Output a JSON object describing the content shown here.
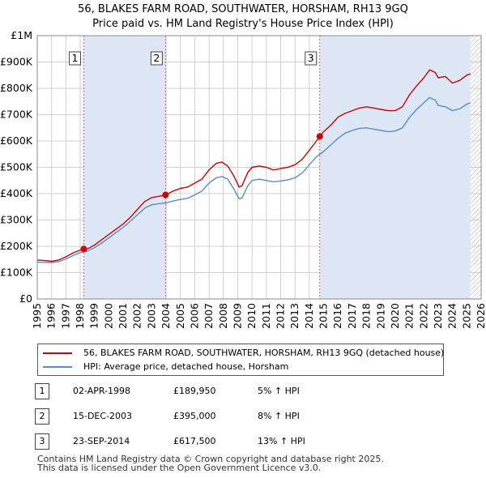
{
  "title_line1": "56, BLAKES FARM ROAD, SOUTHWATER, HORSHAM, RH13 9GQ",
  "title_line2": "Price paid vs. HM Land Registry's House Price Index (HPI)",
  "colors": {
    "price_line": "#cc0000",
    "hpi_line": "#5b8cc8",
    "shade": "#dde6f5",
    "hatch": "#aaaaaa",
    "grid": "#d0d0d0",
    "vline": "#e06060"
  },
  "chart_data": {
    "type": "line",
    "x_range": [
      1995,
      2026
    ],
    "ylim": [
      0,
      1000000
    ],
    "y_ticks": [
      {
        "value": 0,
        "label": "£0"
      },
      {
        "value": 100000,
        "label": "£100K"
      },
      {
        "value": 200000,
        "label": "£200K"
      },
      {
        "value": 300000,
        "label": "£300K"
      },
      {
        "value": 400000,
        "label": "£400K"
      },
      {
        "value": 500000,
        "label": "£500K"
      },
      {
        "value": 600000,
        "label": "£600K"
      },
      {
        "value": 700000,
        "label": "£700K"
      },
      {
        "value": 800000,
        "label": "£800K"
      },
      {
        "value": 900000,
        "label": "£900K"
      },
      {
        "value": 1000000,
        "label": "£1M"
      }
    ],
    "x_ticks": [
      "1995",
      "1996",
      "1997",
      "1998",
      "1999",
      "2000",
      "2001",
      "2002",
      "2003",
      "2004",
      "2005",
      "2006",
      "2007",
      "2008",
      "2009",
      "2010",
      "2011",
      "2012",
      "2013",
      "2014",
      "2015",
      "2016",
      "2017",
      "2018",
      "2019",
      "2020",
      "2021",
      "2022",
      "2023",
      "2024",
      "2025",
      "2026"
    ],
    "data_end_year": 2025.25,
    "series": [
      {
        "name": "56, BLAKES FARM ROAD, SOUTHWATER, HORSHAM, RH13 9GQ (detached house)",
        "color": "#cc0000",
        "x": [
          1995,
          1995.5,
          1996,
          1996.5,
          1997,
          1997.5,
          1998,
          1998.25,
          1998.5,
          1999,
          1999.5,
          2000,
          2000.5,
          2001,
          2001.5,
          2002,
          2002.5,
          2003,
          2003.5,
          2003.96,
          2004.5,
          2005,
          2005.5,
          2006,
          2006.5,
          2007,
          2007.5,
          2007.9,
          2008.3,
          2008.7,
          2009.1,
          2009.3,
          2009.7,
          2010,
          2010.5,
          2011,
          2011.5,
          2012,
          2012.5,
          2013,
          2013.5,
          2014,
          2014.5,
          2014.73,
          2015,
          2015.5,
          2016,
          2016.5,
          2017,
          2017.5,
          2018,
          2018.5,
          2019,
          2019.5,
          2020,
          2020.5,
          2021,
          2021.5,
          2022,
          2022.4,
          2022.8,
          2023,
          2023.5,
          2024,
          2024.5,
          2025,
          2025.25
        ],
        "values": [
          148000,
          146000,
          143000,
          148000,
          160000,
          175000,
          185000,
          189950,
          190000,
          205000,
          225000,
          245000,
          265000,
          285000,
          310000,
          340000,
          370000,
          385000,
          390000,
          395000,
          410000,
          420000,
          425000,
          440000,
          455000,
          490000,
          515000,
          520000,
          505000,
          470000,
          425000,
          430000,
          480000,
          500000,
          505000,
          500000,
          490000,
          495000,
          500000,
          510000,
          530000,
          565000,
          600000,
          617500,
          635000,
          660000,
          690000,
          705000,
          715000,
          725000,
          730000,
          725000,
          720000,
          715000,
          715000,
          730000,
          775000,
          810000,
          840000,
          870000,
          860000,
          840000,
          845000,
          820000,
          830000,
          850000,
          855000
        ]
      },
      {
        "name": "HPI: Average price, detached house, Horsham",
        "color": "#5b8cc8",
        "x": [
          1995,
          1995.5,
          1996,
          1996.5,
          1997,
          1997.5,
          1998,
          1998.5,
          1999,
          1999.5,
          2000,
          2000.5,
          2001,
          2001.5,
          2002,
          2002.5,
          2003,
          2003.5,
          2004,
          2004.5,
          2005,
          2005.5,
          2006,
          2006.5,
          2007,
          2007.5,
          2007.9,
          2008.3,
          2008.7,
          2009.1,
          2009.3,
          2009.7,
          2010,
          2010.5,
          2011,
          2011.5,
          2012,
          2012.5,
          2013,
          2013.5,
          2014,
          2014.5,
          2015,
          2015.5,
          2016,
          2016.5,
          2017,
          2017.5,
          2018,
          2018.5,
          2019,
          2019.5,
          2020,
          2020.5,
          2021,
          2021.5,
          2022,
          2022.4,
          2022.8,
          2023,
          2023.5,
          2024,
          2024.5,
          2025,
          2025.25
        ],
        "values": [
          140000,
          139000,
          138000,
          142000,
          152000,
          165000,
          176000,
          182000,
          195000,
          212000,
          232000,
          252000,
          272000,
          295000,
          320000,
          345000,
          358000,
          362000,
          365000,
          372000,
          378000,
          382000,
          395000,
          410000,
          440000,
          460000,
          465000,
          455000,
          420000,
          380000,
          383000,
          430000,
          450000,
          455000,
          450000,
          445000,
          448000,
          452000,
          460000,
          478000,
          510000,
          540000,
          560000,
          585000,
          610000,
          630000,
          640000,
          648000,
          650000,
          645000,
          640000,
          635000,
          638000,
          650000,
          690000,
          720000,
          745000,
          765000,
          755000,
          735000,
          730000,
          715000,
          722000,
          740000,
          745000
        ]
      }
    ],
    "transactions": [
      {
        "num": "1",
        "year": 1998.25,
        "value": 189950,
        "date": "02-APR-1998",
        "price": "£189,950",
        "hpi": "5% ↑ HPI"
      },
      {
        "num": "2",
        "year": 2003.96,
        "value": 395000,
        "date": "15-DEC-2003",
        "price": "£395,000",
        "hpi": "8% ↑ HPI"
      },
      {
        "num": "3",
        "year": 2014.73,
        "value": 617500,
        "date": "23-SEP-2014",
        "price": "£617,500",
        "hpi": "13% ↑ HPI"
      }
    ]
  },
  "legend": {
    "price_label": "56, BLAKES FARM ROAD, SOUTHWATER, HORSHAM, RH13 9GQ (detached house)",
    "hpi_label": "HPI: Average price, detached house, Horsham"
  },
  "footer": {
    "line1": "Contains HM Land Registry data © Crown copyright and database right 2025.",
    "line2": "This data is licensed under the Open Government Licence v3.0."
  }
}
